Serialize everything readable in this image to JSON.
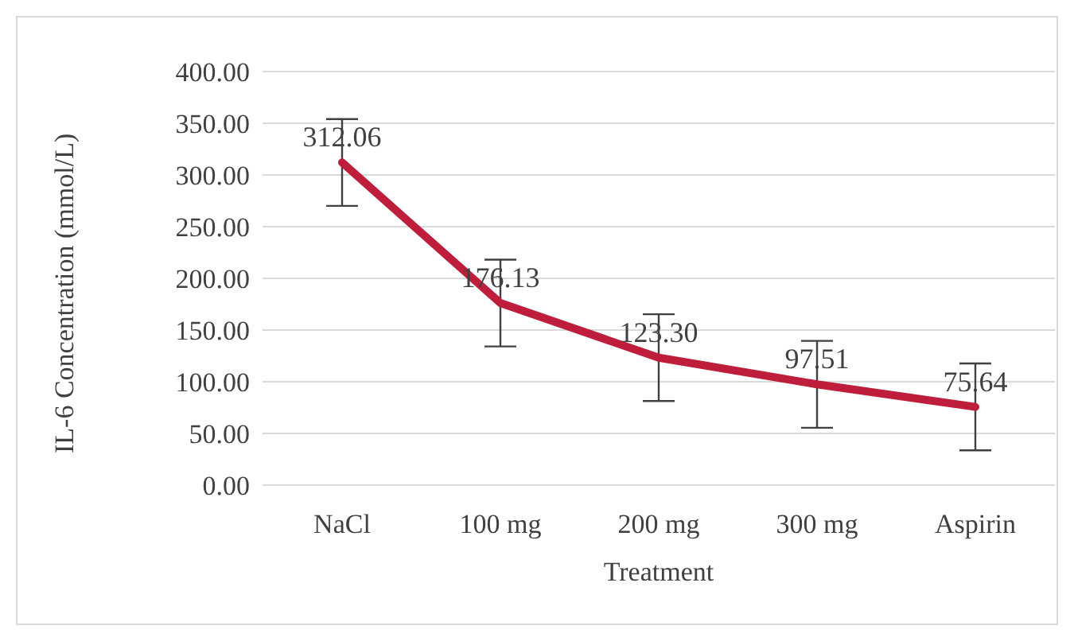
{
  "chart_data": {
    "type": "line",
    "xlabel": "Treatment",
    "ylabel": "IL-6 Concentration (mmol/L)",
    "categories": [
      "NaCl",
      "100 mg",
      "200 mg",
      "300 mg",
      "Aspirin"
    ],
    "series": [
      {
        "color": "#be1e3c",
        "values": [
          312.06,
          176.13,
          123.3,
          97.51,
          75.64
        ],
        "errors": [
          42,
          42,
          42,
          42,
          42
        ],
        "value_labels": [
          "312.06",
          "176.13",
          "123.30",
          "97.51",
          "75.64"
        ]
      }
    ],
    "ylim": [
      0,
      400
    ],
    "yticks": [
      {
        "value": 0,
        "label": "0.00"
      },
      {
        "value": 50,
        "label": "50.00"
      },
      {
        "value": 100,
        "label": "100.00"
      },
      {
        "value": 150,
        "label": "150.00"
      },
      {
        "value": 200,
        "label": "200.00"
      },
      {
        "value": 250,
        "label": "250.00"
      },
      {
        "value": 300,
        "label": "300.00"
      },
      {
        "value": 350,
        "label": "350.00"
      },
      {
        "value": 400,
        "label": "400.00"
      }
    ],
    "grid": "y",
    "legend": false,
    "marker": "none",
    "line_style": "solid"
  }
}
